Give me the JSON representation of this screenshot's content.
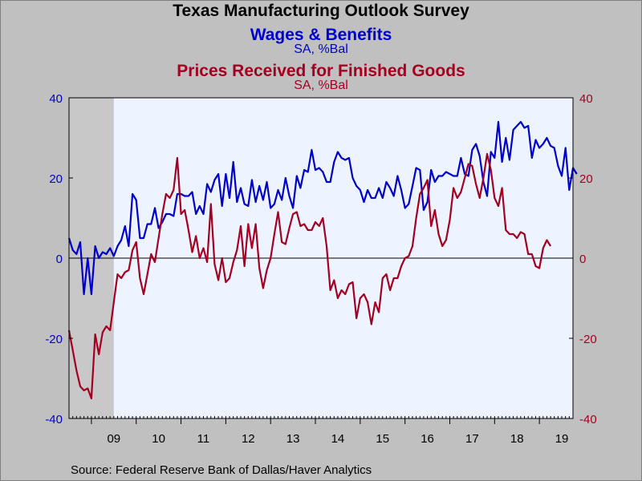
{
  "title": "Texas Manufacturing Outlook Survey",
  "source": "Source:  Federal Reserve Bank of Dallas/Haver Analytics",
  "chart_data": {
    "type": "line",
    "title": "Texas Manufacturing Outlook Survey",
    "x_tick_labels": [
      "09",
      "10",
      "11",
      "12",
      "13",
      "14",
      "15",
      "16",
      "17",
      "18",
      "19"
    ],
    "x_range": [
      "2008-07",
      "2019-10"
    ],
    "ylim_left": [
      -40,
      40
    ],
    "ylim_right": [
      -40,
      40
    ],
    "y_ticks_left": [
      "-40",
      "-20",
      "0",
      "20",
      "40"
    ],
    "y_ticks_right": [
      "-40",
      "-20",
      "0",
      "20",
      "40"
    ],
    "zero_line": true,
    "grid": false,
    "recession_shading": [
      "2008-07",
      "2009-06"
    ],
    "plot_background": "#eef4ff",
    "recession_color": "#c8c8c8",
    "series": [
      {
        "name": "Wages & Benefits",
        "unit": "SA, %Bal",
        "axis": "left",
        "color": "#0000cc",
        "start": "2008-07",
        "values": [
          5,
          2,
          1,
          4,
          -9,
          0,
          -9,
          3,
          0,
          1.5,
          1,
          2.5,
          0.5,
          3,
          4.5,
          8,
          3,
          16,
          14.5,
          5,
          5,
          8.5,
          8.5,
          12.5,
          7.5,
          9,
          11,
          11,
          10.5,
          16,
          16,
          15.5,
          15.5,
          16.5,
          11,
          13,
          11,
          18.5,
          16.5,
          19.5,
          21,
          13,
          21,
          15,
          24,
          14,
          17.5,
          13.5,
          13,
          19.5,
          14,
          18,
          14.5,
          19,
          12.5,
          13.5,
          17,
          14.5,
          20,
          15.5,
          12.5,
          20.5,
          17.5,
          22,
          21.5,
          27,
          22,
          22.5,
          21.5,
          19,
          19,
          24,
          26.5,
          25,
          24.5,
          25,
          20,
          18,
          17,
          14,
          17,
          15,
          15,
          17.5,
          15,
          19,
          17.5,
          15.5,
          20.5,
          17,
          12.5,
          13.5,
          18,
          22.5,
          22,
          12,
          14,
          22,
          19,
          20.5,
          20.5,
          21.5,
          21,
          20.5,
          20.5,
          25,
          21,
          20.5,
          27,
          28.5,
          25.5,
          19,
          15.5,
          26.5,
          25,
          34,
          24,
          30,
          24.5,
          32,
          33,
          34,
          32.5,
          33,
          25,
          29.5,
          27.5,
          28.5,
          30,
          28,
          27.5,
          23,
          20.5,
          27.5,
          17,
          22.5,
          21
        ]
      },
      {
        "name": "Prices Received for Finished Goods",
        "unit": "SA, %Bal",
        "axis": "right",
        "color": "#a50021",
        "start": "2008-07",
        "values": [
          -18,
          -23,
          -28,
          -32,
          -33,
          -32.5,
          -35,
          -19,
          -24,
          -18.5,
          -17,
          -18,
          -11,
          -4,
          -5,
          -3.5,
          -3,
          2,
          4,
          -5,
          -9,
          -4,
          1,
          -1,
          5,
          11,
          16,
          15,
          17,
          25,
          11,
          12,
          7,
          1.5,
          5.5,
          0,
          2.5,
          -1,
          13.5,
          -1.5,
          -5.5,
          0,
          -6,
          -5,
          -1,
          2,
          8,
          -2,
          8.5,
          2.5,
          8.5,
          -2.5,
          -7.5,
          -3,
          0,
          6,
          11.5,
          4,
          3.5,
          7.5,
          11,
          11.5,
          8,
          8.5,
          7,
          7,
          9,
          8,
          10,
          3,
          -8,
          -5.5,
          -10,
          -8,
          -9,
          -6.5,
          -6,
          -15,
          -10,
          -9,
          -11,
          -16.5,
          -11,
          -13.5,
          -5,
          -4,
          -8,
          -5,
          -5,
          -2,
          0,
          0.5,
          3,
          10,
          16,
          17.5,
          19.5,
          8,
          12,
          6,
          3,
          4.5,
          9.5,
          17.5,
          15,
          16.5,
          20,
          23.5,
          23,
          18.5,
          15,
          20,
          26,
          22,
          15,
          13,
          17.5,
          7,
          6,
          6,
          5,
          6.5,
          6,
          1,
          1,
          -2,
          -2.5,
          2.5,
          4.5,
          3
        ]
      }
    ]
  }
}
